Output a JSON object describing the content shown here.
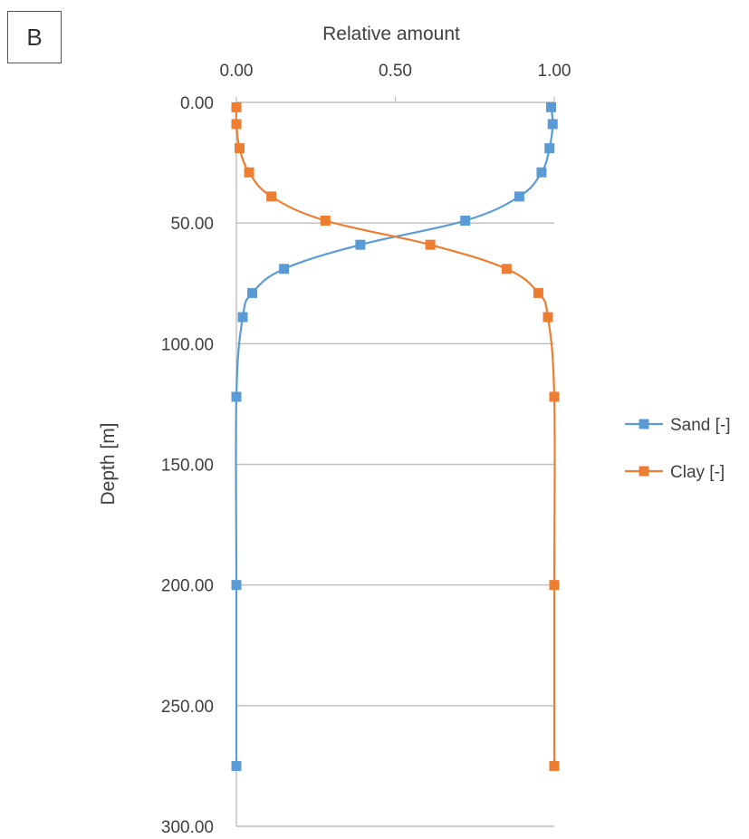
{
  "panel_label": "B",
  "chart_data": {
    "type": "line",
    "title": "",
    "xlabel": "Relative amount",
    "ylabel": "Depth [m]",
    "xlim": [
      0,
      1
    ],
    "ylim": [
      0,
      300
    ],
    "y_inverted": true,
    "x_axis_position": "top",
    "x_ticks": [
      0,
      0.5,
      1
    ],
    "x_tick_labels": [
      "0.00",
      "0.50",
      "1.00"
    ],
    "y_ticks": [
      0,
      50,
      100,
      150,
      200,
      250,
      300
    ],
    "y_tick_labels": [
      "0.00",
      "50.00",
      "100.00",
      "150.00",
      "200.00",
      "250.00",
      "300.00"
    ],
    "grid": "horizontal",
    "legend_position": "right",
    "series": [
      {
        "name": "Sand [-]",
        "color": "#5b9bd5",
        "marker": "square",
        "points": [
          {
            "x": 0.99,
            "y": 2
          },
          {
            "x": 0.995,
            "y": 9
          },
          {
            "x": 0.985,
            "y": 19
          },
          {
            "x": 0.96,
            "y": 29
          },
          {
            "x": 0.89,
            "y": 39
          },
          {
            "x": 0.72,
            "y": 49
          },
          {
            "x": 0.39,
            "y": 59
          },
          {
            "x": 0.15,
            "y": 69
          },
          {
            "x": 0.05,
            "y": 79
          },
          {
            "x": 0.02,
            "y": 89
          },
          {
            "x": 0.0,
            "y": 122
          },
          {
            "x": 0.0,
            "y": 200
          },
          {
            "x": 0.0,
            "y": 275
          }
        ]
      },
      {
        "name": "Clay [-]",
        "color": "#ed7d31",
        "marker": "square",
        "points": [
          {
            "x": 0.0,
            "y": 2
          },
          {
            "x": 0.0,
            "y": 9
          },
          {
            "x": 0.01,
            "y": 19
          },
          {
            "x": 0.04,
            "y": 29
          },
          {
            "x": 0.11,
            "y": 39
          },
          {
            "x": 0.28,
            "y": 49
          },
          {
            "x": 0.61,
            "y": 59
          },
          {
            "x": 0.85,
            "y": 69
          },
          {
            "x": 0.95,
            "y": 79
          },
          {
            "x": 0.98,
            "y": 89
          },
          {
            "x": 1.0,
            "y": 122
          },
          {
            "x": 1.0,
            "y": 200
          },
          {
            "x": 1.0,
            "y": 275
          }
        ]
      }
    ]
  }
}
